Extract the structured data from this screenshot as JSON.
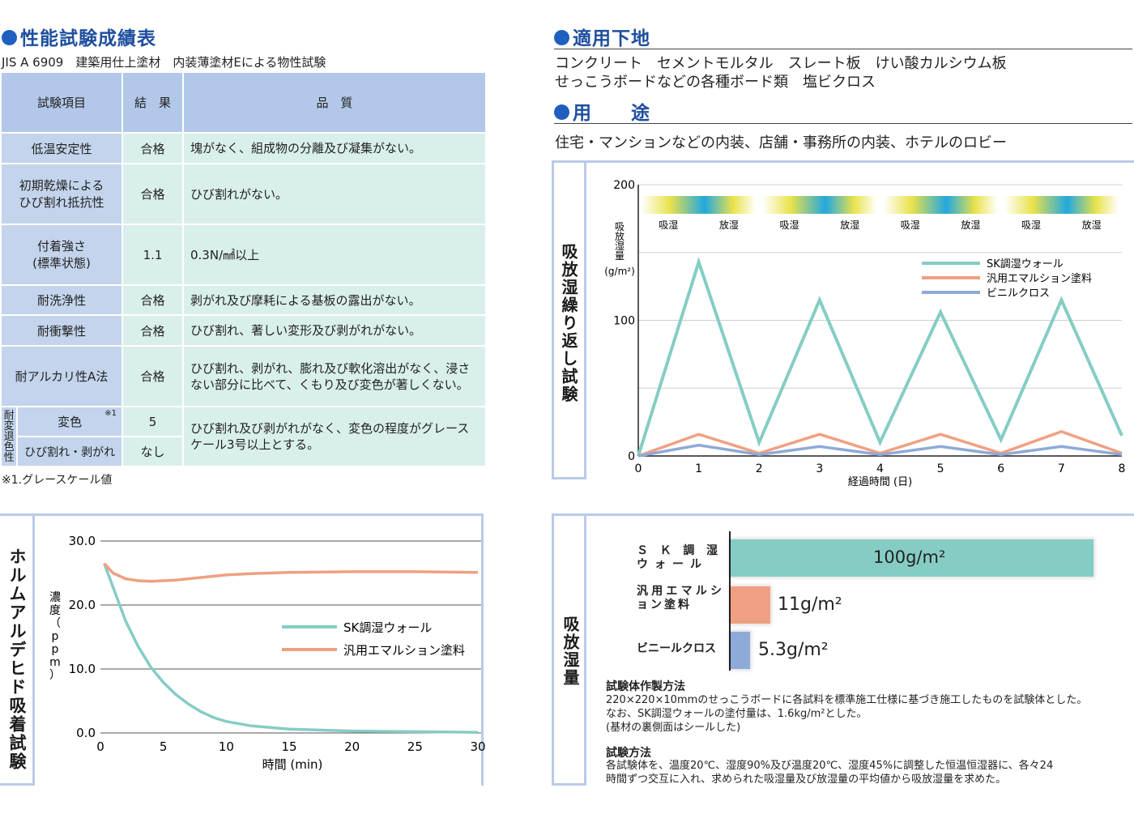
{
  "left": {
    "title": "性能試験成績表",
    "standard": "JIS A 6909　建築用仕上塗材　内装薄塗材Eによる物性試験",
    "table": {
      "headers": [
        "試験項目",
        "結　果",
        "品　質"
      ],
      "rows": [
        {
          "item": "低温安定性",
          "result": "合格",
          "quality": "塊がなく、組成物の分離及び凝集がない。"
        },
        {
          "item": "初期乾燥による\nひび割れ抵抗性",
          "result": "合格",
          "quality": "ひび割れがない。"
        },
        {
          "item": "付着強さ\n(標準状態)",
          "result": "1.1",
          "quality": "0.3N/㎟以上"
        },
        {
          "item": "耐洗浄性",
          "result": "合格",
          "quality": "剥がれ及び摩耗による基板の露出がない。"
        },
        {
          "item": "耐衝撃性",
          "result": "合格",
          "quality": "ひび割れ、著しい変形及び剥がれがない。"
        },
        {
          "item": "耐アルカリ性A法",
          "result": "合格",
          "quality": "ひび割れ、剥がれ、膨れ及び軟化溶出がなく、浸さない部分に比べて、くもり及び変色が著しくない。"
        }
      ],
      "group_label": "耐変退色性",
      "sub_rows": [
        {
          "item": "変色",
          "mark": "※1",
          "result": "5"
        },
        {
          "item": "ひび割れ・剥がれ",
          "result": "なし"
        }
      ],
      "group_quality": "ひび割れ及び剥がれがなく、変色の程度がグレースケール3号以上とする。"
    },
    "footnote": "※1.グレースケール値"
  },
  "right": {
    "substrate_title": "適用下地",
    "substrate_line1": "コンクリート　セメントモルタル　スレート板　けい酸カルシウム板",
    "substrate_line2": "せっこうボードなどの各種ボード類　塩ビクロス",
    "usage_title": "用　　途",
    "usage_text": "住宅・マンションなどの内装、店舗・事務所の内装、ホテルのロビー"
  },
  "cycle_chart": {
    "side_title": "吸放湿繰り返し試験",
    "ylabel": "吸放湿量",
    "yunit": "(g/m²)",
    "xlabel": "経過時間 (日)",
    "bands": [
      "吸湿",
      "放湿",
      "吸湿",
      "放湿",
      "吸湿",
      "放湿",
      "吸湿",
      "放湿"
    ],
    "chart_data": {
      "type": "line",
      "x": [
        0,
        1,
        2,
        3,
        4,
        5,
        6,
        7,
        8
      ],
      "xlim": [
        0,
        8
      ],
      "ylim": [
        0,
        200
      ],
      "yticks": [
        0,
        100,
        200
      ],
      "series": [
        {
          "name": "SK調湿ウォール",
          "color": "#85cdc4",
          "values": [
            0,
            143,
            10,
            115,
            10,
            106,
            12,
            115,
            15
          ]
        },
        {
          "name": "汎用エマルション塗料",
          "color": "#f0a082",
          "values": [
            0,
            16,
            2,
            16,
            2,
            16,
            2,
            18,
            2
          ]
        },
        {
          "name": "ビニルクロス",
          "color": "#8eaad8",
          "values": [
            0,
            8,
            1,
            7,
            1,
            7,
            1,
            7,
            1
          ]
        }
      ]
    }
  },
  "formaldehyde_chart": {
    "side_title": "ホルムアルデヒド吸着試験",
    "ylabel": "濃度（ppm）",
    "xlabel": "時間 (min)",
    "chart_data": {
      "type": "line",
      "xlim": [
        0,
        30
      ],
      "ylim": [
        0,
        30
      ],
      "xticks": [
        0,
        5,
        10,
        15,
        20,
        25,
        30
      ],
      "yticks": [
        "0.0",
        "10.0",
        "20.0",
        "30.0"
      ],
      "series": [
        {
          "name": "SK調湿ウォール",
          "color": "#85cdc4",
          "x": [
            0.3,
            1,
            2,
            3,
            4,
            5,
            6,
            7,
            8,
            9,
            10,
            12,
            15,
            20,
            25,
            30
          ],
          "values": [
            26.5,
            22.8,
            17.5,
            13.5,
            10.3,
            7.9,
            6.0,
            4.5,
            3.3,
            2.4,
            1.8,
            1.1,
            0.6,
            0.3,
            0.2,
            0.1
          ]
        },
        {
          "name": "汎用エマルション塗料",
          "color": "#f0a082",
          "x": [
            0.3,
            1,
            2,
            3,
            4,
            5,
            6,
            8,
            10,
            12,
            15,
            20,
            25,
            30
          ],
          "values": [
            26.5,
            25.0,
            24.1,
            23.8,
            23.7,
            23.8,
            23.9,
            24.3,
            24.7,
            24.9,
            25.1,
            25.2,
            25.2,
            25.1
          ]
        }
      ]
    }
  },
  "absorption_chart": {
    "side_title": "吸放湿量",
    "chart_data": {
      "type": "bar",
      "categories": [
        "ＳＫ調湿ウォール",
        "汎用エマルション塗料",
        "ビニールクロス"
      ],
      "values": [
        100,
        11,
        5.3
      ],
      "value_labels": [
        "100g/m²",
        "11g/m²",
        "5.3g/m²"
      ],
      "colors": [
        "#85cdc4",
        "#f0a082",
        "#8eaad8"
      ]
    },
    "method_title": "試験体作製方法",
    "method_lines": [
      "220×220×10mmのせっこうボードに各試料を標準施工仕様に基づき施工したものを試験体とした。",
      "なお、SK調湿ウォールの塗付量は、1.6kg/m²とした。",
      "(基材の裏側面はシールした)"
    ],
    "test_title": "試験方法",
    "test_lines": [
      "各試験体を、温度20℃、湿度90%及び温度20℃、湿度45%に調整した恒温恒湿器に、各々24",
      "時間ずつ交互に入れ、求められた吸湿量及び放湿量の平均値から吸放湿量を求めた。"
    ]
  }
}
